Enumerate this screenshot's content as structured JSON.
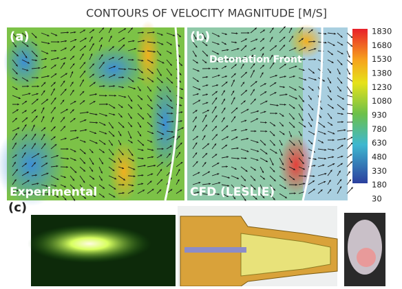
{
  "header": {
    "title": "CONTOURS OF VELOCITY MAGNITUDE [M/S]"
  },
  "panels": [
    {
      "label": "(a)",
      "caption": "Experimental"
    },
    {
      "label": "(b)",
      "caption": "CFD (LESLIE)",
      "annotation": "Detonation Front"
    },
    {
      "label": "(c)"
    }
  ],
  "colorbar": {
    "ticks": [
      1830,
      1680,
      1530,
      1380,
      1230,
      1080,
      930,
      780,
      630,
      480,
      330,
      180,
      30
    ]
  }
}
